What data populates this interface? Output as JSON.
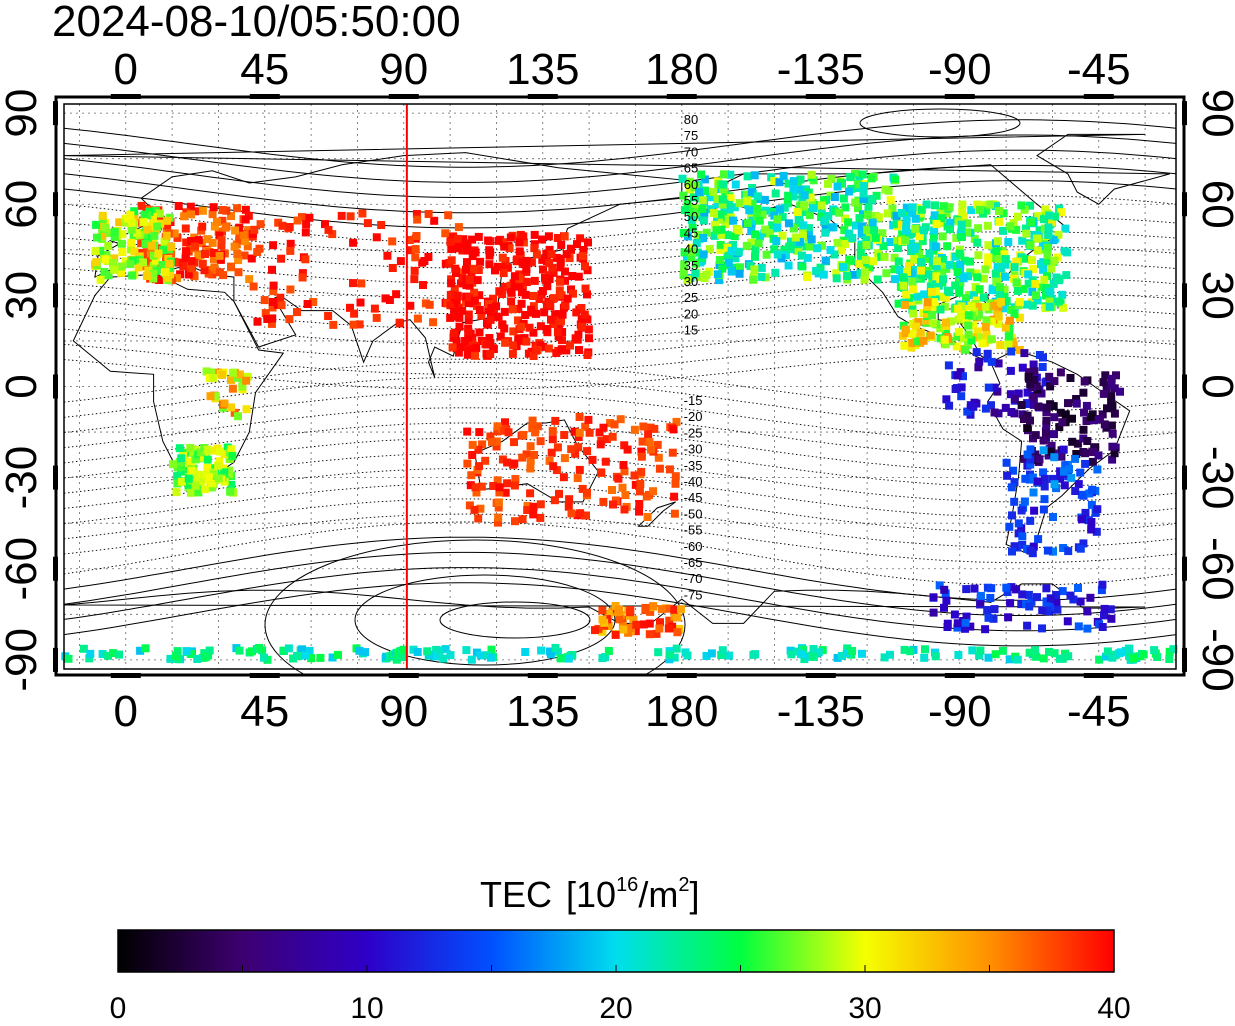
{
  "timestamp": "2024-08-10/05:50:00",
  "axes": {
    "top_lon_labels": [
      "0",
      "45",
      "90",
      "135",
      "180",
      "-135",
      "-90",
      "-45"
    ],
    "bottom_lon_labels": [
      "0",
      "45",
      "90",
      "135",
      "180",
      "-135",
      "-90",
      "-45"
    ],
    "left_lat_labels": [
      "90",
      "60",
      "30",
      "0",
      "-30",
      "-60",
      "-90"
    ],
    "right_lat_labels": [
      "90",
      "60",
      "30",
      "0",
      "-30",
      "-60",
      "-90"
    ]
  },
  "map": {
    "lon_range": [
      -20,
      180,
      -35
    ],
    "lat_range": [
      -93,
      93
    ],
    "subsolar_marker_lon": 91,
    "marker_color": "#ff0000",
    "contour_labels_north": [
      "80",
      "75",
      "70",
      "65",
      "60",
      "55",
      "50",
      "45",
      "40",
      "35",
      "30",
      "25",
      "20",
      "15"
    ],
    "contour_labels_south": [
      "-15",
      "-20",
      "-25",
      "-30",
      "-35",
      "-40",
      "-45",
      "-50",
      "-55",
      "-60",
      "-65",
      "-70",
      "-75"
    ]
  },
  "colorbar": {
    "title": "TEC",
    "unit_base": "10",
    "unit_exp": "16",
    "unit_tail": "/m",
    "unit_exp2": "2",
    "tick_labels": [
      "0",
      "10",
      "20",
      "30",
      "40"
    ],
    "min": 0,
    "max": 40,
    "stops": [
      "#000000",
      "#3d0070",
      "#2e00c8",
      "#0050ff",
      "#00ddee",
      "#00ff40",
      "#f5ff00",
      "#ff9000",
      "#ff0000"
    ]
  },
  "tec_regions": [
    {
      "name": "europe",
      "value": 38
    },
    {
      "name": "west-europe",
      "value": 29
    },
    {
      "name": "russia-asia",
      "value": 39
    },
    {
      "name": "east-asia",
      "value": 40
    },
    {
      "name": "australia-nz",
      "value": 38
    },
    {
      "name": "north-america-west",
      "value": 24
    },
    {
      "name": "north-america-east",
      "value": 25
    },
    {
      "name": "mexico-caribbean",
      "value": 30
    },
    {
      "name": "central-america",
      "value": 10
    },
    {
      "name": "south-america-north",
      "value": 4
    },
    {
      "name": "south-america-south",
      "value": 14
    },
    {
      "name": "southern-africa",
      "value": 27
    },
    {
      "name": "east-africa",
      "value": 32
    },
    {
      "name": "antarctic-peninsula",
      "value": 12
    },
    {
      "name": "ross-sea",
      "value": 36
    },
    {
      "name": "polar-band",
      "value": 22
    }
  ]
}
